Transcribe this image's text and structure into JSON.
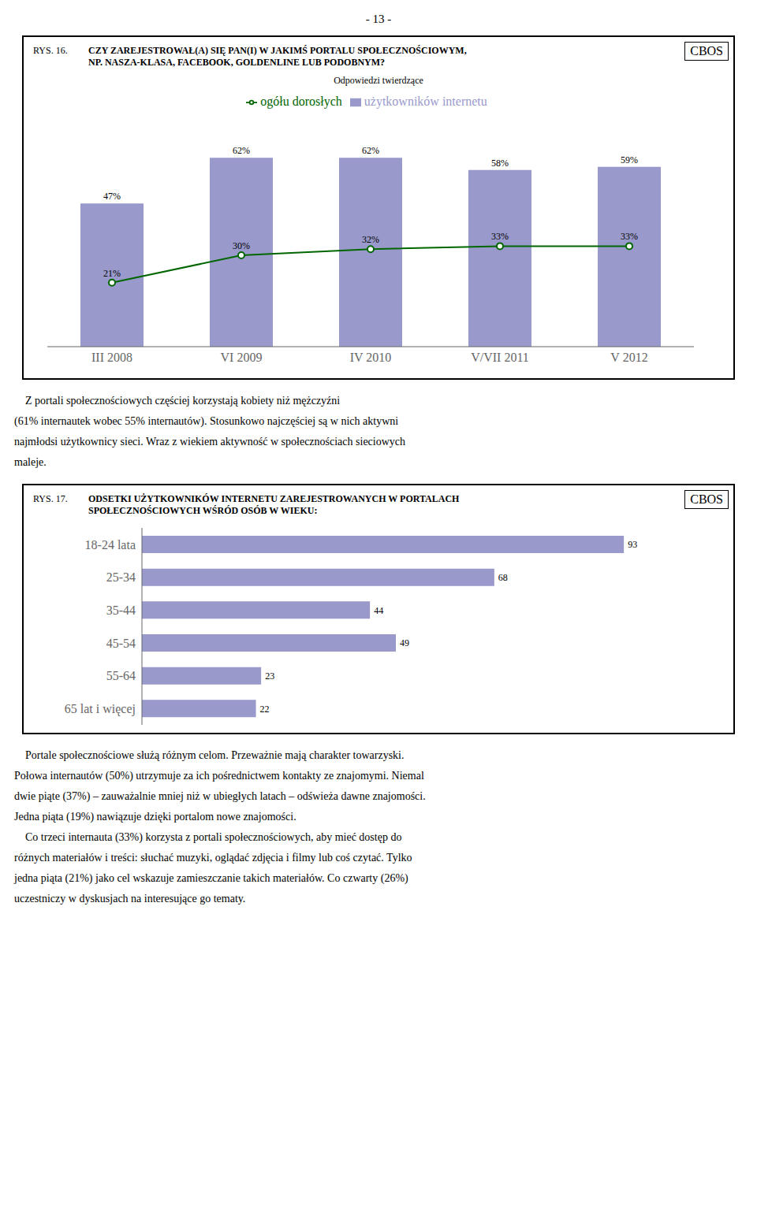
{
  "annotations": [
    "- 13 -"
  ],
  "chart_data": [
    {
      "type": "bar",
      "title": "RYS. 16.",
      "subtitle": [
        "CZY ZAREJESTROWAŁ(A) SIĘ PAN(I) W JAKIMŚ PORTALU SPOŁECZNOŚCIOWYM,",
        "NP. NASZA-KLASA, FACEBOOK, GOLDENLINE LUB PODOBNYM?"
      ],
      "annotations": [
        "CBOS"
      ],
      "legend_title": "Odpowiedzi twierdzące",
      "legend": "top",
      "categories": [
        "III 2008",
        "VI 2009",
        "IV 2010",
        "V/VII 2011",
        "V 2012"
      ],
      "series": [
        {
          "name": "użytkowników internetu",
          "type": "bar",
          "color": "#9999cc",
          "values": [
            47,
            62,
            62,
            58,
            59
          ],
          "value_labels": [
            "47%",
            "62%",
            "62%",
            "58%",
            "59%"
          ]
        },
        {
          "name": "ogółu dorosłych",
          "type": "line",
          "color": "#006600",
          "marker": "circle",
          "values": [
            21,
            30,
            32,
            33,
            33
          ],
          "value_labels": [
            "21%",
            "30%",
            "32%",
            "33%",
            "33%"
          ]
        }
      ],
      "ylim": [
        0,
        75
      ],
      "data_labels": true,
      "tick_labels": "x",
      "grid": false,
      "paragraph": [
        "    Z portali społecznościowych częściej korzystają kobiety niż mężczyźni",
        "(61% internautek wobec 55% internautów). Stosunkowo najczęściej są w nich aktywni",
        "najmłodsi użytkownicy sieci. Wraz z wiekiem aktywność w społecznościach sieciowych",
        "maleje."
      ]
    },
    {
      "type": "bar",
      "orientation": "horizontal",
      "title": "RYS. 17.",
      "subtitle": [
        "ODSETKI UŻYTKOWNIKÓW INTERNETU ZAREJESTROWANYCH W PORTALACH",
        "SPOŁECZNOŚCIOWYCH WŚRÓD OSÓB W WIEKU:"
      ],
      "annotations": [
        "CBOS"
      ],
      "categories": [
        "18-24 lata",
        "25-34",
        "35-44",
        "45-54",
        "55-64",
        "65 lat i więcej"
      ],
      "values": [
        93,
        68,
        44,
        49,
        23,
        22
      ],
      "color": "#9999cc",
      "xlim": [
        0,
        105
      ],
      "data_labels": true,
      "tick_labels": "y",
      "grid": false,
      "paragraph": [
        "    Portale społecznościowe służą różnym celom. Przeważnie mają charakter towarzyski.",
        "Połowa internautów (50%) utrzymuje za ich pośrednictwem kontakty ze znajomymi. Niemal",
        "dwie piąte (37%) – zauważalnie mniej niż w ubiegłych latach – odświeża dawne znajomości.",
        "Jedna piąta (19%) nawiązuje dzięki portalom nowe znajomości.",
        "    Co trzeci internauta (33%) korzysta z portali społecznościowych, aby mieć dostęp do",
        "różnych materiałów i treści: słuchać muzyki, oglądać zdjęcia i filmy lub coś czytać. Tylko",
        "jedna piąta (21%) jako cel wskazuje zamieszczanie takich materiałów. Co czwarty (26%)",
        "uczestniczy w dyskusjach na interesujące go tematy."
      ]
    }
  ]
}
